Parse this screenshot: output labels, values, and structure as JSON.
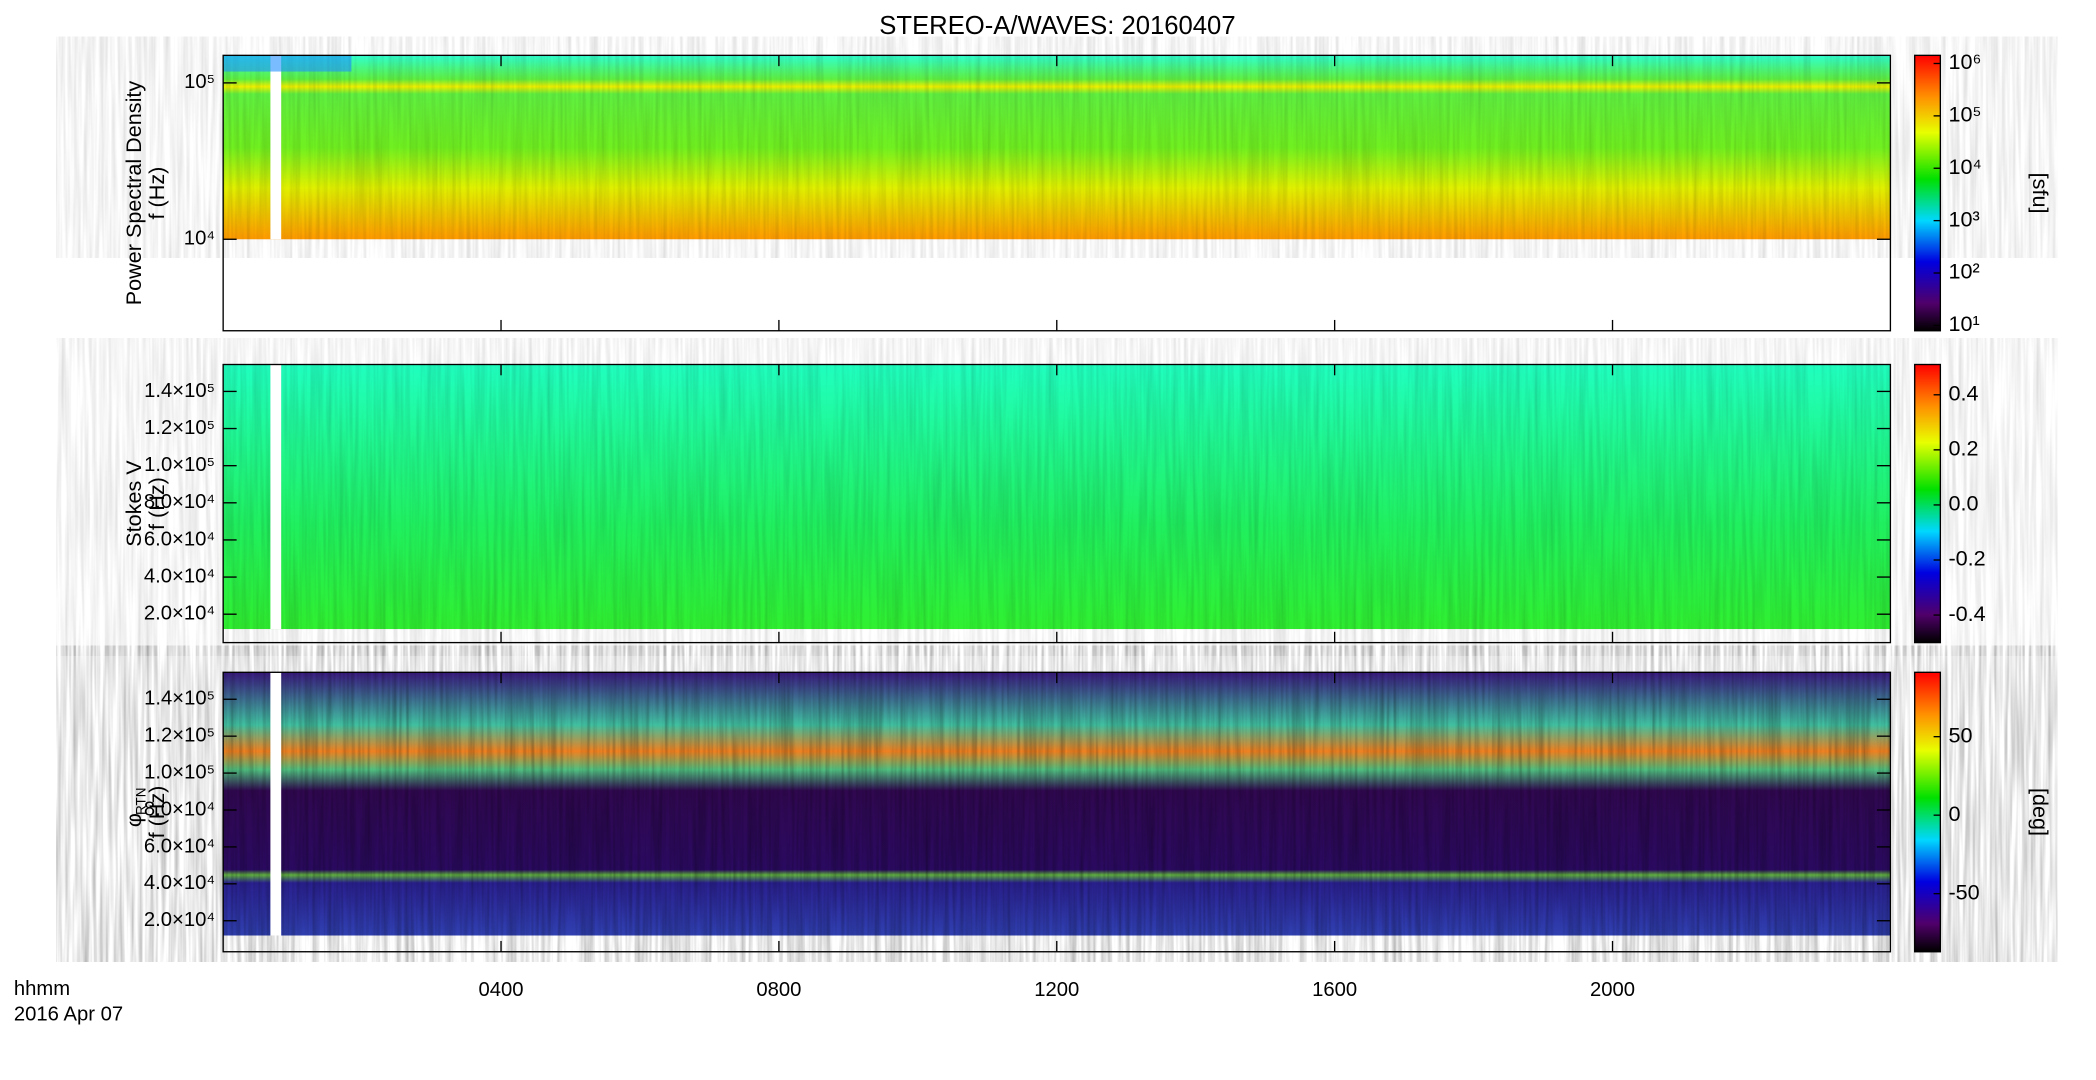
{
  "title": "STEREO-A/WAVES: 20160407",
  "xaxis": {
    "label": "hhmm",
    "date": "2016 Apr 07",
    "xlim": [
      0,
      24
    ],
    "xticks": [
      {
        "value": 4,
        "label": "0400"
      },
      {
        "value": 8,
        "label": "0800"
      },
      {
        "value": 12,
        "label": "1200"
      },
      {
        "value": 16,
        "label": "1600"
      },
      {
        "value": 20,
        "label": "2000"
      }
    ]
  },
  "chart_data": [
    {
      "type": "heatmap",
      "ylabel": [
        "Power Spectral Density",
        "f (Hz)"
      ],
      "ylog": true,
      "ylim": [
        2600,
        150000
      ],
      "yticks": [
        {
          "value": 10000,
          "label": "10⁴"
        },
        {
          "value": 100000,
          "label": "10⁵"
        }
      ],
      "colorbar_label": "[sfu]",
      "clog": true,
      "clim": [
        7.9,
        1430000
      ],
      "cticks": [
        {
          "value": 10,
          "label": "10¹"
        },
        {
          "value": 100,
          "label": "10²"
        },
        {
          "value": 1000,
          "label": "10³"
        },
        {
          "value": 10000,
          "label": "10⁴"
        },
        {
          "value": 100000,
          "label": "10⁵"
        },
        {
          "value": 1000000,
          "label": "10⁶"
        }
      ]
    },
    {
      "type": "heatmap",
      "ylabel": [
        "Stokes V",
        "f (Hz)"
      ],
      "ylog": false,
      "ylim": [
        4700,
        154500
      ],
      "yticks": [
        {
          "value": 20000,
          "label": "2.0×10⁴"
        },
        {
          "value": 40000,
          "label": "4.0×10⁴"
        },
        {
          "value": 60000,
          "label": "6.0×10⁴"
        },
        {
          "value": 80000,
          "label": "8.0×10⁴"
        },
        {
          "value": 100000,
          "label": "1.0×10⁵"
        },
        {
          "value": 120000,
          "label": "1.2×10⁵"
        },
        {
          "value": 140000,
          "label": "1.4×10⁵"
        }
      ],
      "colorbar_label": "",
      "clog": false,
      "clim": [
        -0.5,
        0.51
      ],
      "cticks": [
        {
          "value": -0.4,
          "label": "-0.4"
        },
        {
          "value": -0.2,
          "label": "-0.2"
        },
        {
          "value": 0,
          "label": "0.0"
        },
        {
          "value": 0.2,
          "label": "0.2"
        },
        {
          "value": 0.4,
          "label": "0.4"
        }
      ]
    },
    {
      "type": "heatmap",
      "ylabel": [
        "φ",
        "f (Hz)"
      ],
      "ylabel_sub": "RTN",
      "ylog": false,
      "ylim": [
        3200,
        154600
      ],
      "yticks": [
        {
          "value": 20000,
          "label": "2.0×10⁴"
        },
        {
          "value": 40000,
          "label": "4.0×10⁴"
        },
        {
          "value": 60000,
          "label": "6.0×10⁴"
        },
        {
          "value": 80000,
          "label": "8.0×10⁴"
        },
        {
          "value": 100000,
          "label": "1.0×10⁵"
        },
        {
          "value": 120000,
          "label": "1.2×10⁵"
        },
        {
          "value": 140000,
          "label": "1.4×10⁵"
        }
      ],
      "colorbar_label": "[deg]",
      "clog": false,
      "clim": [
        -87,
        91
      ],
      "cticks": [
        -50,
        0,
        50
      ]
    }
  ]
}
